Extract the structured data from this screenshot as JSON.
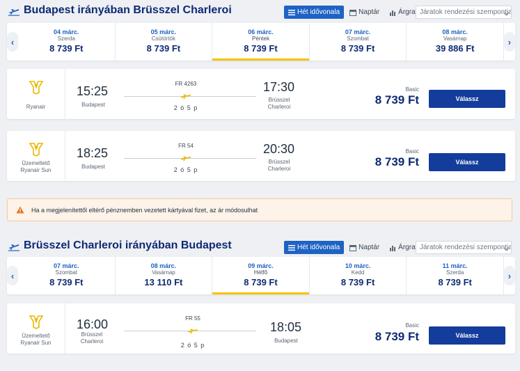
{
  "outbound": {
    "title": "Budapest irányában Brüsszel Charleroi",
    "view_options": {
      "week": "Hét idővonala",
      "calendar": "Naptár",
      "chart": "Árgrafikon"
    },
    "sort_placeholder": "Járatok rendezési szempontja:",
    "dates": [
      {
        "date": "04 márc.",
        "weekday": "Szerda",
        "price": "8 739 Ft"
      },
      {
        "date": "05 márc.",
        "weekday": "Csütörtök",
        "price": "8 739 Ft"
      },
      {
        "date": "06 márc.",
        "weekday": "Péntek",
        "price": "8 739 Ft",
        "selected": true
      },
      {
        "date": "07 márc.",
        "weekday": "Szombat",
        "price": "8 739 Ft"
      },
      {
        "date": "08 márc.",
        "weekday": "Vasárnap",
        "price": "39 886 Ft"
      }
    ],
    "flights": [
      {
        "airline": "Ryanair",
        "flight_no": "FR 4263",
        "dep_time": "15:25",
        "dep_place": "Budapest",
        "arr_time": "17:30",
        "arr_place_1": "Brüsszel",
        "arr_place_2": "Charleroi",
        "duration": "2 ó 5 p",
        "fare_type": "Basic",
        "price": "8 739 Ft",
        "button": "Válassz"
      },
      {
        "airline_1": "Üzemeltető",
        "airline_2": "Ryanair Sun",
        "flight_no": "FR 54",
        "dep_time": "18:25",
        "dep_place": "Budapest",
        "arr_time": "20:30",
        "arr_place_1": "Brüsszel",
        "arr_place_2": "Charleroi",
        "duration": "2 ó 5 p",
        "fare_type": "Basic",
        "price": "8 739 Ft",
        "button": "Válassz"
      }
    ]
  },
  "warning": "Ha a megjelenítettől eltérő pénznemben vezetett kártyával fizet, az ár módosulhat",
  "return": {
    "title": "Brüsszel Charleroi irányában Budapest",
    "view_options": {
      "week": "Hét idővonala",
      "calendar": "Naptár",
      "chart": "Árgrafikon"
    },
    "sort_placeholder": "Járatok rendezési szempontja:",
    "dates": [
      {
        "date": "07 márc.",
        "weekday": "Szombat",
        "price": "8 739 Ft"
      },
      {
        "date": "08 márc.",
        "weekday": "Vasárnap",
        "price": "13 110 Ft"
      },
      {
        "date": "09 márc.",
        "weekday": "Hétfő",
        "price": "8 739 Ft",
        "selected": true
      },
      {
        "date": "10 márc.",
        "weekday": "Kedd",
        "price": "8 739 Ft"
      },
      {
        "date": "11 márc.",
        "weekday": "Szerda",
        "price": "8 739 Ft"
      }
    ],
    "flights": [
      {
        "airline_1": "Üzemeltető",
        "airline_2": "Ryanair Sun",
        "flight_no": "FR 55",
        "dep_time": "16:00",
        "dep_place_1": "Brüsszel",
        "dep_place_2": "Charleroi",
        "arr_time": "18:05",
        "arr_place": "Budapest",
        "duration": "2 ó 5 p",
        "fare_type": "Basic",
        "price": "8 739 Ft",
        "button": "Válassz"
      }
    ]
  },
  "colors": {
    "brand": "#0d2a73",
    "accent": "#1e63c4",
    "selected_bar": "#f5c400",
    "button": "#143c9c"
  }
}
